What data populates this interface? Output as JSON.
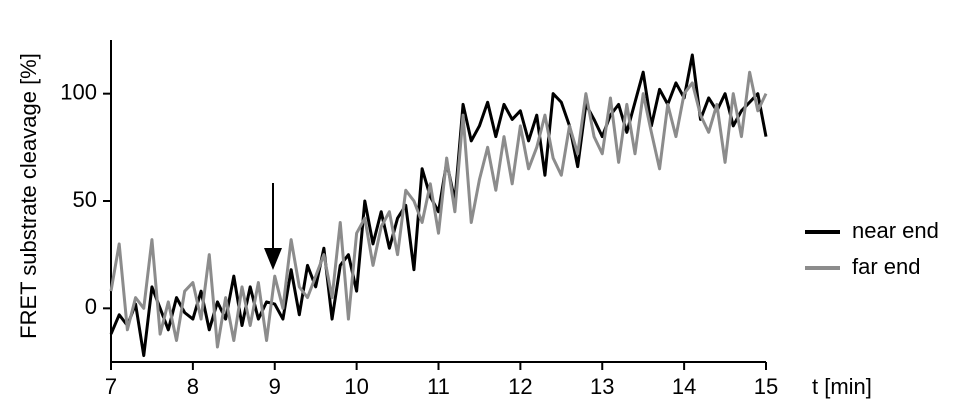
{
  "chart_data": {
    "type": "line",
    "y_label": "FRET substrate cleavage [%]",
    "x_label": "t [min]",
    "x": [
      7.0,
      7.1,
      7.2,
      7.3,
      7.4,
      7.5,
      7.6,
      7.7,
      7.8,
      7.9,
      8.0,
      8.1,
      8.2,
      8.3,
      8.4,
      8.5,
      8.6,
      8.7,
      8.8,
      8.9,
      9.0,
      9.1,
      9.2,
      9.3,
      9.4,
      9.5,
      9.6,
      9.7,
      9.8,
      9.9,
      10.0,
      10.1,
      10.2,
      10.3,
      10.4,
      10.5,
      10.6,
      10.7,
      10.8,
      10.9,
      11.0,
      11.1,
      11.2,
      11.3,
      11.4,
      11.5,
      11.6,
      11.7,
      11.8,
      11.9,
      12.0,
      12.1,
      12.2,
      12.3,
      12.4,
      12.5,
      12.6,
      12.7,
      12.8,
      12.9,
      13.0,
      13.1,
      13.2,
      13.3,
      13.4,
      13.5,
      13.6,
      13.7,
      13.8,
      13.9,
      14.0,
      14.1,
      14.2,
      14.3,
      14.4,
      14.5,
      14.6,
      14.7,
      14.8,
      14.9,
      15.0
    ],
    "series": [
      {
        "name": "near end",
        "color": "#000000",
        "values": [
          -12,
          -3,
          -8,
          2,
          -22,
          10,
          0,
          -10,
          5,
          -2,
          -5,
          8,
          -10,
          3,
          -5,
          15,
          -8,
          10,
          -5,
          3,
          2,
          -5,
          18,
          -3,
          20,
          10,
          28,
          -5,
          20,
          25,
          8,
          50,
          30,
          45,
          28,
          42,
          48,
          18,
          65,
          52,
          45,
          68,
          50,
          95,
          78,
          85,
          96,
          80,
          95,
          88,
          92,
          78,
          90,
          62,
          100,
          96,
          85,
          66,
          95,
          88,
          80,
          90,
          95,
          82,
          96,
          110,
          85,
          102,
          95,
          105,
          98,
          118,
          88,
          98,
          92,
          100,
          85,
          92,
          96,
          100,
          80
        ]
      },
      {
        "name": "far end",
        "color": "#8c8c8c",
        "values": [
          8,
          30,
          -10,
          5,
          0,
          32,
          -12,
          3,
          -15,
          8,
          12,
          -5,
          25,
          -18,
          5,
          -15,
          10,
          -8,
          12,
          -15,
          15,
          0,
          32,
          10,
          5,
          15,
          25,
          5,
          40,
          -5,
          35,
          42,
          20,
          38,
          45,
          25,
          55,
          50,
          40,
          58,
          35,
          70,
          45,
          90,
          40,
          60,
          75,
          55,
          80,
          58,
          85,
          65,
          75,
          90,
          70,
          62,
          85,
          72,
          100,
          80,
          72,
          98,
          68,
          95,
          72,
          100,
          82,
          65,
          95,
          80,
          100,
          105,
          90,
          82,
          95,
          68,
          100,
          80,
          110,
          92,
          100
        ]
      }
    ],
    "xlim": [
      7,
      15
    ],
    "xticks": [
      7,
      8,
      9,
      10,
      11,
      12,
      13,
      14,
      15
    ],
    "ylim": [
      -25,
      125
    ],
    "yticks": [
      0,
      50,
      100
    ],
    "grid": false,
    "legend": "right"
  }
}
